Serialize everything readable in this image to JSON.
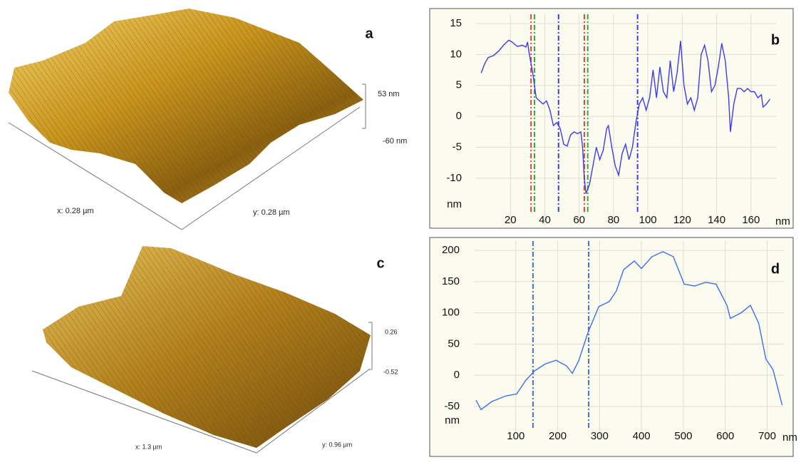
{
  "panels": [
    {
      "label": "a",
      "x_label": "x: 0.28 µm",
      "y_label": "y: 0.28 µm",
      "z_max": "53 nm",
      "z_min": "-60 nm"
    },
    {
      "label": "c",
      "x_label": "x: 1.3 µm",
      "y_label": "y: 0.96 µm",
      "z_max": "0.26",
      "z_min": "-0.52"
    }
  ],
  "chart_data": [
    {
      "type": "line",
      "label": "b",
      "x_label": "nm",
      "y_label": "nm",
      "color": "#3b3bf0",
      "x": [
        3,
        5,
        7,
        10,
        13,
        16,
        19,
        21,
        24,
        27,
        29,
        30,
        31,
        33,
        35,
        37,
        39,
        41,
        43,
        45,
        47,
        49,
        51,
        53,
        55,
        57,
        59,
        61,
        62,
        63,
        64,
        66,
        68,
        70,
        72,
        74,
        76,
        77,
        79,
        81,
        83,
        85,
        87,
        89,
        91,
        93,
        95,
        97,
        99,
        101,
        103,
        105,
        107,
        109,
        111,
        113,
        115,
        117,
        119,
        121,
        123,
        125,
        127,
        129,
        131,
        133,
        135,
        137,
        139,
        141,
        143,
        145,
        147,
        148,
        150,
        152,
        154,
        156,
        158,
        160,
        162,
        164,
        166,
        167,
        169,
        171
      ],
      "values": [
        7,
        8.5,
        9.5,
        9.8,
        10.5,
        11.5,
        12.3,
        12,
        11.3,
        11.5,
        11.2,
        12,
        10,
        7,
        3,
        2.5,
        2,
        2.5,
        1,
        -1.5,
        -1,
        -2,
        -4.5,
        -4.8,
        -3,
        -2.5,
        -2.8,
        -2.5,
        -5,
        -10,
        -12.5,
        -11,
        -8,
        -5,
        -7,
        -5.5,
        -2,
        -1.5,
        -5,
        -8,
        -9.5,
        -6,
        -4.5,
        -7,
        -5,
        -1,
        2,
        3,
        1,
        3,
        7.5,
        3,
        8,
        4,
        3,
        9,
        4,
        7,
        12.2,
        5,
        2,
        3,
        1,
        3,
        10,
        11.5,
        9,
        4,
        5,
        8,
        11.8,
        9,
        3,
        -2.5,
        2,
        4.5,
        4.5,
        4,
        4.5,
        4,
        4,
        3,
        3.5,
        1.5,
        2,
        2.8
      ],
      "markers": [
        {
          "x": 32,
          "color": "#e0453a"
        },
        {
          "x": 34,
          "color": "#3aa63a"
        },
        {
          "x": 48,
          "color": "#3b3bf0"
        },
        {
          "x": 63,
          "color": "#e0453a"
        },
        {
          "x": 65,
          "color": "#3aa63a"
        },
        {
          "x": 94,
          "color": "#3b3bf0"
        }
      ],
      "xlim": [
        0,
        175
      ],
      "ylim": [
        -17.5,
        16.5
      ],
      "xticks": [
        20,
        40,
        60,
        80,
        100,
        120,
        140,
        160
      ],
      "yticks": [
        15,
        10,
        5,
        0,
        -5,
        -10
      ],
      "grid": true
    },
    {
      "type": "line",
      "label": "d",
      "x_label": "nm",
      "y_label": "nm",
      "color": "#3b6ff0",
      "x": [
        5,
        17,
        43,
        77,
        102,
        124,
        145,
        170,
        196,
        221,
        235,
        250,
        272,
        298,
        323,
        340,
        357,
        383,
        400,
        425,
        451,
        476,
        502,
        527,
        553,
        578,
        604,
        612,
        638,
        660,
        680,
        697,
        714,
        736
      ],
      "values": [
        -40,
        -55,
        -42,
        -33,
        -30,
        -8,
        7,
        18,
        24,
        15,
        3,
        23,
        68,
        110,
        118,
        135,
        169,
        183,
        171,
        190,
        198,
        190,
        146,
        143,
        149,
        146,
        112,
        91,
        100,
        112,
        83,
        26,
        9,
        -48
      ],
      "markers": [
        {
          "x": 141,
          "color": "#3b6ff0"
        },
        {
          "x": 274,
          "color": "#3b6ff0"
        }
      ],
      "xlim": [
        0,
        740
      ],
      "ylim": [
        -105,
        215
      ],
      "xticks": [
        100,
        200,
        300,
        400,
        500,
        600,
        700
      ],
      "yticks": [
        200,
        150,
        100,
        50,
        0,
        -50
      ],
      "grid": true
    }
  ]
}
